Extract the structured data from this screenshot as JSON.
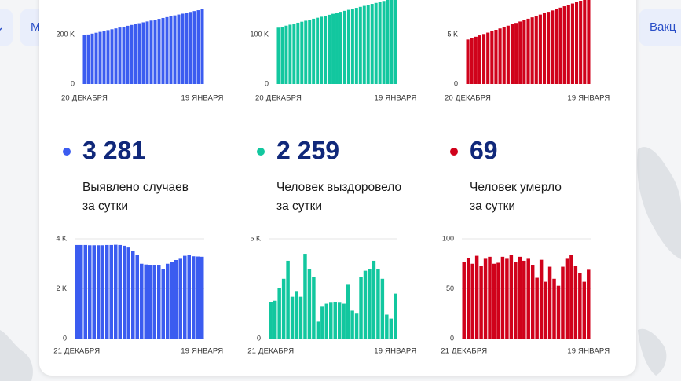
{
  "nav": [
    "М",
    "Вакц"
  ],
  "stats": [
    {
      "value": "3 281",
      "label": [
        "Выявлено случаев",
        "за сутки"
      ]
    },
    {
      "value": "2 259",
      "label": [
        "Человек выздоровело",
        "за сутки"
      ]
    },
    {
      "value": "69",
      "label": [
        "Человек умерло",
        "за сутки"
      ]
    }
  ],
  "chart_data": [
    {
      "type": "bar",
      "color": "#3b5cf0",
      "grid": false,
      "categories": [
        "20 ДЕКАБРЯ",
        null,
        null,
        null,
        null,
        null,
        null,
        null,
        null,
        null,
        null,
        null,
        null,
        null,
        null,
        null,
        null,
        null,
        null,
        null,
        null,
        null,
        null,
        null,
        null,
        null,
        null,
        null,
        null,
        null,
        "19 ЯНВАРЯ"
      ],
      "values": [
        197000,
        200500,
        204000,
        207500,
        211000,
        214500,
        218000,
        221500,
        225000,
        228500,
        232000,
        235500,
        239000,
        242500,
        246000,
        249500,
        253000,
        256500,
        260000,
        263500,
        267000,
        270500,
        274000,
        277500,
        281000,
        284500,
        288000,
        291500,
        295000,
        298500,
        302000
      ],
      "ylim": [
        0,
        340000
      ],
      "yticks": [
        0,
        {
          "value": 200000,
          "label": "200 K"
        }
      ]
    },
    {
      "type": "bar",
      "color": "#12c79f",
      "grid": false,
      "categories": [
        "20 ДЕКАБРЯ",
        null,
        null,
        null,
        null,
        null,
        null,
        null,
        null,
        null,
        null,
        null,
        null,
        null,
        null,
        null,
        null,
        null,
        null,
        null,
        null,
        null,
        null,
        null,
        null,
        null,
        null,
        null,
        null,
        null,
        "19 ЯНВАРЯ"
      ],
      "values": [
        114000,
        116000,
        118000,
        120000,
        122000,
        124000,
        126000,
        128000,
        130000,
        132000,
        134000,
        136000,
        138000,
        140000,
        142000,
        144000,
        146000,
        148000,
        150000,
        152000,
        154000,
        156000,
        158000,
        160000,
        162000,
        164000,
        166000,
        168000,
        170000,
        172000,
        174000
      ],
      "ylim": [
        0,
        170000
      ],
      "yticks": [
        0,
        {
          "value": 100000,
          "label": "100 K"
        }
      ]
    },
    {
      "type": "bar",
      "color": "#d0021b",
      "grid": false,
      "categories": [
        "20 ДЕКАБРЯ",
        null,
        null,
        null,
        null,
        null,
        null,
        null,
        null,
        null,
        null,
        null,
        null,
        null,
        null,
        null,
        null,
        null,
        null,
        null,
        null,
        null,
        null,
        null,
        null,
        null,
        null,
        null,
        null,
        null,
        "19 ЯНВАРЯ"
      ],
      "values": [
        4500,
        4640,
        4780,
        4920,
        5060,
        5200,
        5340,
        5480,
        5620,
        5760,
        5900,
        6040,
        6180,
        6320,
        6460,
        6600,
        6740,
        6880,
        7020,
        7160,
        7300,
        7440,
        7580,
        7720,
        7860,
        8000,
        8140,
        8280,
        8420,
        8560,
        8700
      ],
      "ylim": [
        0,
        8500
      ],
      "yticks": [
        0,
        {
          "value": 5000,
          "label": "5 K"
        }
      ]
    },
    {
      "type": "bar",
      "color": "#3b5cf0",
      "grid": true,
      "categories": [
        "21 ДЕКАБРЯ",
        null,
        null,
        null,
        null,
        null,
        null,
        null,
        null,
        null,
        null,
        null,
        null,
        null,
        null,
        null,
        null,
        null,
        null,
        null,
        null,
        null,
        null,
        null,
        null,
        null,
        null,
        null,
        null,
        "19 ЯНВАРЯ"
      ],
      "values": [
        3750,
        3750,
        3750,
        3740,
        3740,
        3740,
        3740,
        3750,
        3750,
        3760,
        3750,
        3720,
        3650,
        3500,
        3350,
        3000,
        2970,
        2960,
        2960,
        2960,
        2800,
        3000,
        3080,
        3150,
        3200,
        3320,
        3350,
        3300,
        3290,
        3281
      ],
      "ylim": [
        0,
        4000
      ],
      "yticks": [
        0,
        {
          "value": 2000,
          "label": "2 K"
        },
        {
          "value": 4000,
          "label": "4 K"
        }
      ]
    },
    {
      "type": "bar",
      "color": "#12c79f",
      "grid": true,
      "categories": [
        "21 ДЕКАБРЯ",
        null,
        null,
        null,
        null,
        null,
        null,
        null,
        null,
        null,
        null,
        null,
        null,
        null,
        null,
        null,
        null,
        null,
        null,
        null,
        null,
        null,
        null,
        null,
        null,
        null,
        null,
        null,
        null,
        "19 ЯНВАРЯ"
      ],
      "values": [
        1850,
        1900,
        2550,
        3000,
        3900,
        2100,
        2350,
        2100,
        4250,
        3500,
        3100,
        850,
        1600,
        1750,
        1800,
        1850,
        1800,
        1750,
        2700,
        1400,
        1250,
        3100,
        3400,
        3500,
        3900,
        3500,
        3000,
        1200,
        1000,
        2259
      ],
      "ylim": [
        0,
        5000
      ],
      "yticks": [
        0,
        {
          "value": 5000,
          "label": "5 K"
        }
      ]
    },
    {
      "type": "bar",
      "color": "#d0021b",
      "grid": true,
      "categories": [
        "21 ДЕКАБРЯ",
        null,
        null,
        null,
        null,
        null,
        null,
        null,
        null,
        null,
        null,
        null,
        null,
        null,
        null,
        null,
        null,
        null,
        null,
        null,
        null,
        null,
        null,
        null,
        null,
        null,
        null,
        null,
        null,
        "19 ЯНВАРЯ"
      ],
      "values": [
        77,
        81,
        75,
        83,
        73,
        80,
        82,
        75,
        76,
        82,
        80,
        84,
        77,
        82,
        78,
        80,
        74,
        61,
        79,
        57,
        72,
        60,
        53,
        72,
        80,
        84,
        73,
        66,
        57,
        69
      ],
      "ylim": [
        0,
        100
      ],
      "yticks": [
        0,
        50,
        100
      ]
    }
  ]
}
